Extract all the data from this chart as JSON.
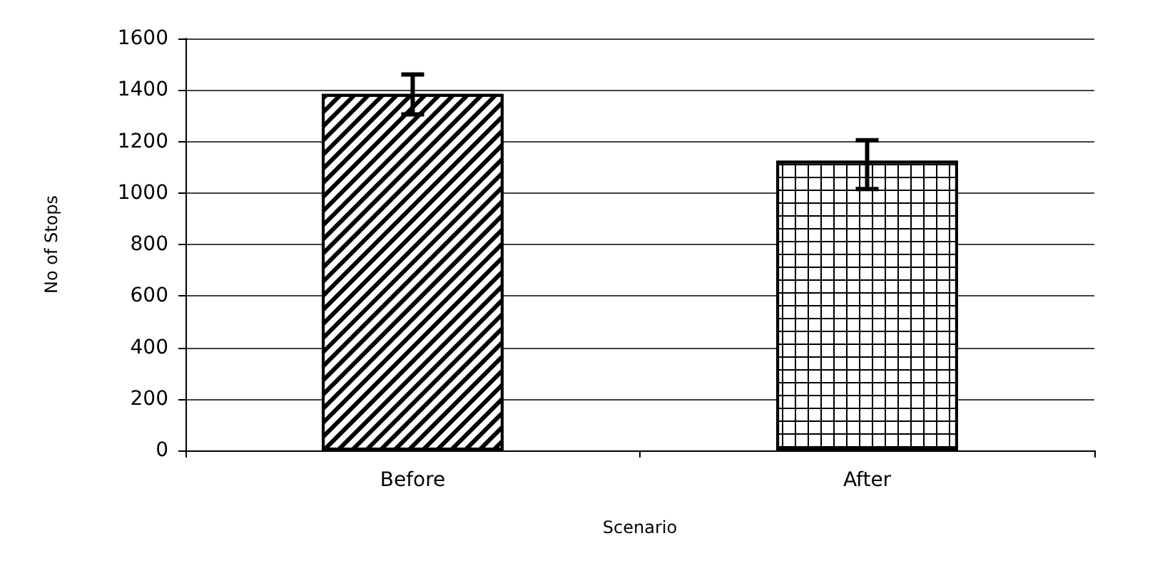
{
  "chart_data": {
    "type": "bar",
    "xlabel": "Scenario",
    "ylabel": "No of Stops",
    "categories": [
      "Before",
      "After"
    ],
    "values": [
      1385,
      1125
    ],
    "errors": [
      [
        1305,
        1460
      ],
      [
        1015,
        1205
      ]
    ],
    "color": "#000000",
    "ylim": [
      0,
      1600
    ],
    "yticks": [
      0,
      200,
      400,
      600,
      800,
      1000,
      1200,
      1400,
      1600
    ],
    "grid": "y"
  }
}
